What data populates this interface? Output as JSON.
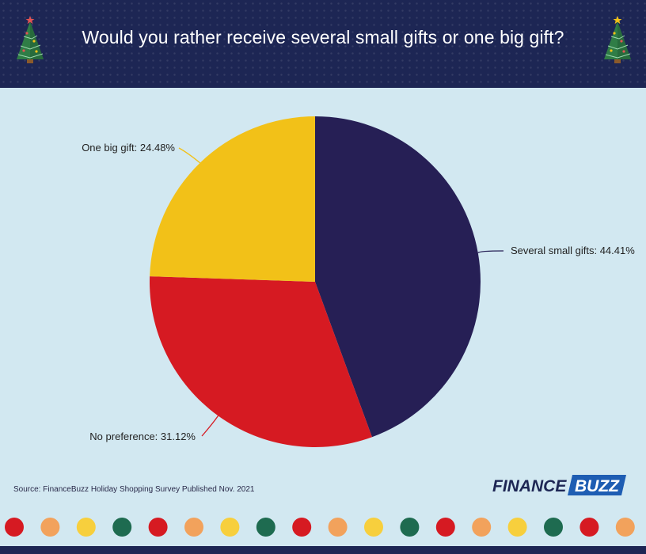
{
  "header": {
    "title": "Would you rather receive several small gifts or one big gift?",
    "background_color": "#1d2654",
    "left_icon": "christmas-tree-icon",
    "right_icon": "christmas-tree-icon"
  },
  "chart_data": {
    "type": "pie",
    "title": "Would you rather receive several small gifts or one big gift?",
    "slices": [
      {
        "label": "Several small gifts",
        "value": 44.41,
        "display": "Several small gifts: 44.41%",
        "color": "#261f55"
      },
      {
        "label": "No preference",
        "value": 31.12,
        "display": "No preference: 31.12%",
        "color": "#d61a22"
      },
      {
        "label": "One big gift",
        "value": 24.48,
        "display": "One big gift: 24.48%",
        "color": "#f2c118"
      }
    ],
    "start_angle": "12 o'clock",
    "direction": "clockwise"
  },
  "footer": {
    "source": "Source: FinanceBuzz Holiday Shopping Survey Published Nov. 2021",
    "logo": {
      "word1": "FINANCE",
      "word2": "BUZZ",
      "word2_background": "#1e5db3"
    }
  },
  "decoration": {
    "dot_colors": [
      "#d61a22",
      "#f2a25c",
      "#f7cf3d",
      "#1e6b50",
      "#d61a22",
      "#f2a25c",
      "#f7cf3d",
      "#1e6b50",
      "#d61a22",
      "#f2a25c",
      "#f7cf3d",
      "#1e6b50",
      "#d61a22",
      "#f2a25c",
      "#f7cf3d",
      "#1e6b50",
      "#d61a22",
      "#f2a25c"
    ]
  }
}
